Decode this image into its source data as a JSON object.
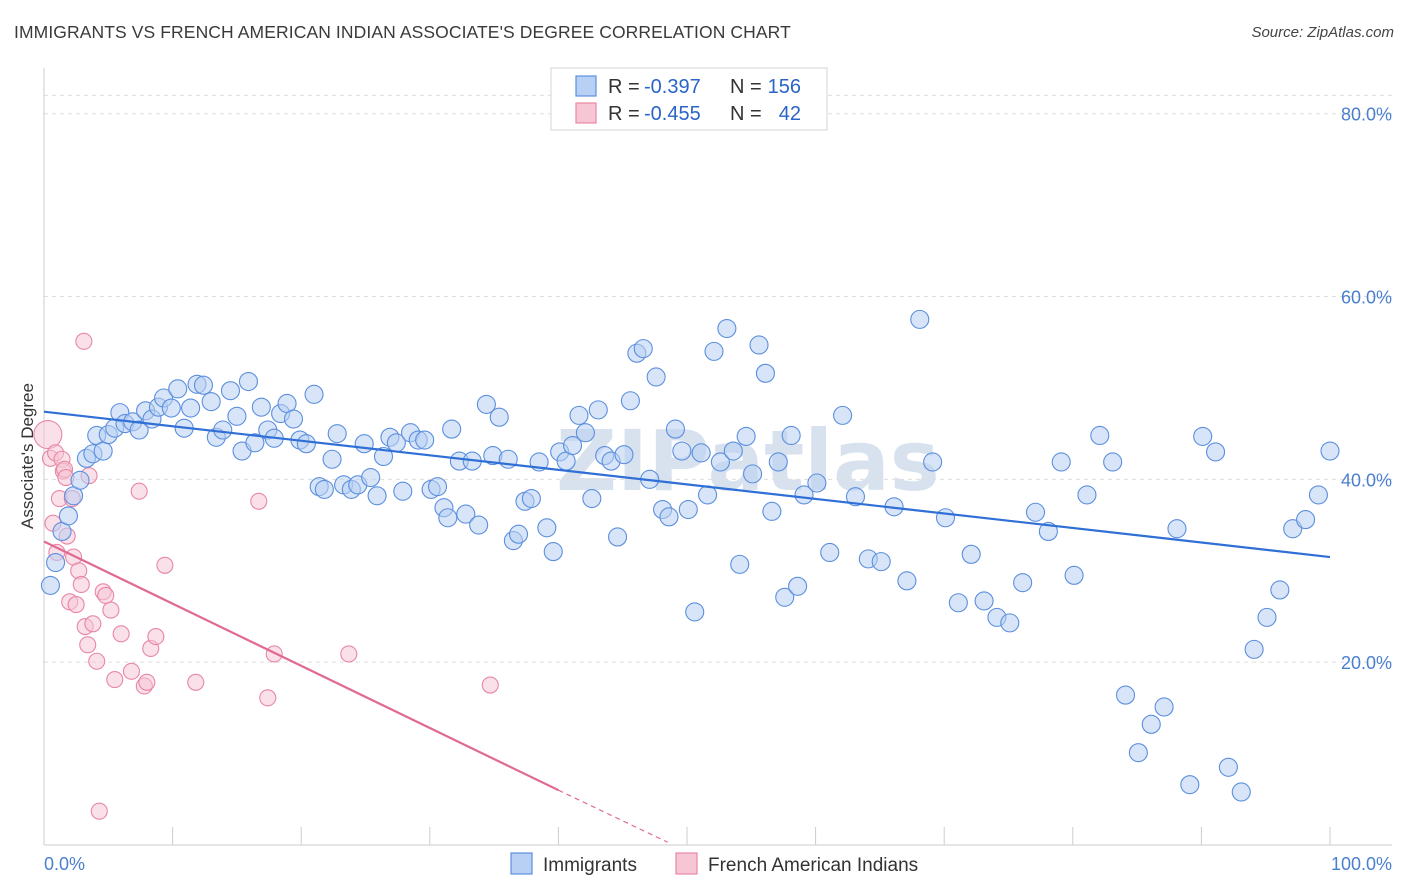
{
  "title": "IMMIGRANTS VS FRENCH AMERICAN INDIAN ASSOCIATE'S DEGREE CORRELATION CHART",
  "source": "Source: ZipAtlas.com",
  "watermark": "ZIPatlas",
  "colors": {
    "immigrants": "#5b8fde",
    "immigrants_fill": "#b8d0f3",
    "immigrants_line": "#2f6fd6",
    "french": "#e887a5",
    "french_fill": "#f6c6d5",
    "french_line": "#e06a93",
    "tick_text": "#4a7fcf",
    "grid": "#dddddd"
  },
  "legend": {
    "rows": [
      {
        "r_label": "R =",
        "r_value": "-0.397",
        "n_label": "N =",
        "n_value": "156"
      },
      {
        "r_label": "R =",
        "r_value": "-0.455",
        "n_label": "N =",
        "n_value": "42"
      }
    ]
  },
  "chart_data": {
    "type": "scatter",
    "title": "IMMIGRANTS VS FRENCH AMERICAN INDIAN ASSOCIATE'S DEGREE CORRELATION CHART",
    "xlabel": "",
    "ylabel": "Associate's Degree",
    "xlim": [
      0,
      100
    ],
    "ylim": [
      0,
      85
    ],
    "x_tick_labels": [
      "0.0%",
      "100.0%"
    ],
    "y_ticks": [
      20,
      40,
      60,
      80
    ],
    "y_tick_labels": [
      "20.0%",
      "40.0%",
      "60.0%",
      "80.0%"
    ],
    "grid": true,
    "legend_position": "bottom-center",
    "series": [
      {
        "name": "Immigrants",
        "r": -0.397,
        "n": 156,
        "trend": {
          "x0": 0,
          "y0": 47.4,
          "x1": 100,
          "y1": 31.5
        },
        "points": [
          [
            0.5,
            28.4
          ],
          [
            0.9,
            30.9
          ],
          [
            1.4,
            34.3
          ],
          [
            1.9,
            36.0
          ],
          [
            2.3,
            38.2
          ],
          [
            2.8,
            39.9
          ],
          [
            3.3,
            42.3
          ],
          [
            3.8,
            42.8
          ],
          [
            4.1,
            44.8
          ],
          [
            4.6,
            43.1
          ],
          [
            5.0,
            44.9
          ],
          [
            5.5,
            45.6
          ],
          [
            5.9,
            47.3
          ],
          [
            6.3,
            46.1
          ],
          [
            6.9,
            46.3
          ],
          [
            7.4,
            45.4
          ],
          [
            7.9,
            47.5
          ],
          [
            8.4,
            46.6
          ],
          [
            8.9,
            47.9
          ],
          [
            9.3,
            48.9
          ],
          [
            9.9,
            47.8
          ],
          [
            10.4,
            49.9
          ],
          [
            10.9,
            45.6
          ],
          [
            11.4,
            47.8
          ],
          [
            11.9,
            50.4
          ],
          [
            12.4,
            50.3
          ],
          [
            13.0,
            48.5
          ],
          [
            13.4,
            44.6
          ],
          [
            13.9,
            45.4
          ],
          [
            14.5,
            49.7
          ],
          [
            15.0,
            46.9
          ],
          [
            15.4,
            43.1
          ],
          [
            15.9,
            50.7
          ],
          [
            16.4,
            44.0
          ],
          [
            16.9,
            47.9
          ],
          [
            17.4,
            45.4
          ],
          [
            17.9,
            44.5
          ],
          [
            18.4,
            47.2
          ],
          [
            18.9,
            48.3
          ],
          [
            19.4,
            46.6
          ],
          [
            19.9,
            44.3
          ],
          [
            20.4,
            43.9
          ],
          [
            21.0,
            49.3
          ],
          [
            21.4,
            39.2
          ],
          [
            21.8,
            38.9
          ],
          [
            22.4,
            42.2
          ],
          [
            22.8,
            45.0
          ],
          [
            23.3,
            39.4
          ],
          [
            23.9,
            38.9
          ],
          [
            24.4,
            39.4
          ],
          [
            24.9,
            43.9
          ],
          [
            25.4,
            40.2
          ],
          [
            25.9,
            38.2
          ],
          [
            26.4,
            42.5
          ],
          [
            26.9,
            44.6
          ],
          [
            27.4,
            44.0
          ],
          [
            27.9,
            38.7
          ],
          [
            28.5,
            45.1
          ],
          [
            29.1,
            44.3
          ],
          [
            29.6,
            44.3
          ],
          [
            30.1,
            38.9
          ],
          [
            30.6,
            39.2
          ],
          [
            31.1,
            36.9
          ],
          [
            31.4,
            35.8
          ],
          [
            31.7,
            45.5
          ],
          [
            32.3,
            42.0
          ],
          [
            32.8,
            36.2
          ],
          [
            33.3,
            42.0
          ],
          [
            33.8,
            35.0
          ],
          [
            34.4,
            48.2
          ],
          [
            34.9,
            42.6
          ],
          [
            35.4,
            46.8
          ],
          [
            36.1,
            42.2
          ],
          [
            36.5,
            33.3
          ],
          [
            36.9,
            34.0
          ],
          [
            37.4,
            37.6
          ],
          [
            37.9,
            37.9
          ],
          [
            38.5,
            41.9
          ],
          [
            39.1,
            34.7
          ],
          [
            39.6,
            32.1
          ],
          [
            40.1,
            43.0
          ],
          [
            40.6,
            42.0
          ],
          [
            41.1,
            43.7
          ],
          [
            41.6,
            47.0
          ],
          [
            42.1,
            45.1
          ],
          [
            42.6,
            37.9
          ],
          [
            43.1,
            47.6
          ],
          [
            43.6,
            42.6
          ],
          [
            44.1,
            42.0
          ],
          [
            44.6,
            33.7
          ],
          [
            45.1,
            42.7
          ],
          [
            45.6,
            48.6
          ],
          [
            46.1,
            53.8
          ],
          [
            46.6,
            54.3
          ],
          [
            47.1,
            40.0
          ],
          [
            47.6,
            51.2
          ],
          [
            48.1,
            36.7
          ],
          [
            48.6,
            35.9
          ],
          [
            49.1,
            45.5
          ],
          [
            49.6,
            43.1
          ],
          [
            50.1,
            36.7
          ],
          [
            50.6,
            25.5
          ],
          [
            51.1,
            42.9
          ],
          [
            51.6,
            38.3
          ],
          [
            52.1,
            54.0
          ],
          [
            52.6,
            41.9
          ],
          [
            53.1,
            56.5
          ],
          [
            53.6,
            43.1
          ],
          [
            54.1,
            30.7
          ],
          [
            54.6,
            44.7
          ],
          [
            55.1,
            40.6
          ],
          [
            55.6,
            54.7
          ],
          [
            56.1,
            51.6
          ],
          [
            56.6,
            36.5
          ],
          [
            57.1,
            41.9
          ],
          [
            57.6,
            27.1
          ],
          [
            58.1,
            44.8
          ],
          [
            58.6,
            28.3
          ],
          [
            59.1,
            38.3
          ],
          [
            60.1,
            39.6
          ],
          [
            61.1,
            32.0
          ],
          [
            62.1,
            47.0
          ],
          [
            63.1,
            38.1
          ],
          [
            64.1,
            31.3
          ],
          [
            65.1,
            31.0
          ],
          [
            66.1,
            37.0
          ],
          [
            67.1,
            28.9
          ],
          [
            68.1,
            57.5
          ],
          [
            69.1,
            41.9
          ],
          [
            70.1,
            35.8
          ],
          [
            71.1,
            26.5
          ],
          [
            72.1,
            31.8
          ],
          [
            73.1,
            26.7
          ],
          [
            74.1,
            24.9
          ],
          [
            75.1,
            24.3
          ],
          [
            76.1,
            28.7
          ],
          [
            77.1,
            36.4
          ],
          [
            78.1,
            34.3
          ],
          [
            79.1,
            41.9
          ],
          [
            80.1,
            29.5
          ],
          [
            81.1,
            38.3
          ],
          [
            82.1,
            44.8
          ],
          [
            83.1,
            41.9
          ],
          [
            84.1,
            16.4
          ],
          [
            85.1,
            10.1
          ],
          [
            86.1,
            13.2
          ],
          [
            87.1,
            15.1
          ],
          [
            88.1,
            34.6
          ],
          [
            89.1,
            6.6
          ],
          [
            90.1,
            44.7
          ],
          [
            91.1,
            43.0
          ],
          [
            92.1,
            8.5
          ],
          [
            93.1,
            5.8
          ],
          [
            94.1,
            21.4
          ],
          [
            95.1,
            24.9
          ],
          [
            96.1,
            27.9
          ],
          [
            97.1,
            34.6
          ],
          [
            98.1,
            35.6
          ],
          [
            99.1,
            38.3
          ],
          [
            100.0,
            43.1
          ]
        ]
      },
      {
        "name": "French American Indians",
        "r": -0.455,
        "n": 42,
        "trend": {
          "x0": 0,
          "y0": 33.2,
          "x1": 40,
          "y1": 6.0
        },
        "trend_dashed_to": {
          "x": 48.5,
          "y": 0.3
        },
        "points": [
          [
            0.3,
            44.9
          ],
          [
            0.5,
            42.3
          ],
          [
            0.7,
            35.2
          ],
          [
            0.9,
            42.9
          ],
          [
            1.0,
            32.0
          ],
          [
            1.2,
            37.9
          ],
          [
            1.4,
            42.2
          ],
          [
            1.5,
            40.9
          ],
          [
            1.6,
            41.1
          ],
          [
            1.7,
            40.2
          ],
          [
            1.8,
            33.8
          ],
          [
            2.0,
            26.6
          ],
          [
            2.2,
            37.9
          ],
          [
            2.3,
            31.5
          ],
          [
            2.5,
            26.3
          ],
          [
            2.7,
            30.0
          ],
          [
            2.9,
            28.5
          ],
          [
            3.1,
            55.1
          ],
          [
            3.2,
            23.9
          ],
          [
            3.4,
            21.9
          ],
          [
            3.5,
            40.4
          ],
          [
            3.8,
            24.2
          ],
          [
            4.1,
            20.1
          ],
          [
            4.3,
            3.7
          ],
          [
            4.6,
            27.7
          ],
          [
            4.8,
            27.3
          ],
          [
            5.2,
            25.7
          ],
          [
            5.5,
            18.1
          ],
          [
            6.0,
            23.1
          ],
          [
            6.8,
            19.0
          ],
          [
            7.4,
            38.7
          ],
          [
            7.8,
            17.4
          ],
          [
            8.0,
            17.8
          ],
          [
            8.3,
            21.5
          ],
          [
            8.7,
            22.8
          ],
          [
            9.4,
            30.6
          ],
          [
            11.8,
            17.8
          ],
          [
            16.7,
            37.6
          ],
          [
            17.4,
            16.1
          ],
          [
            17.9,
            20.9
          ],
          [
            23.7,
            20.9
          ],
          [
            34.7,
            17.5
          ]
        ]
      }
    ]
  }
}
